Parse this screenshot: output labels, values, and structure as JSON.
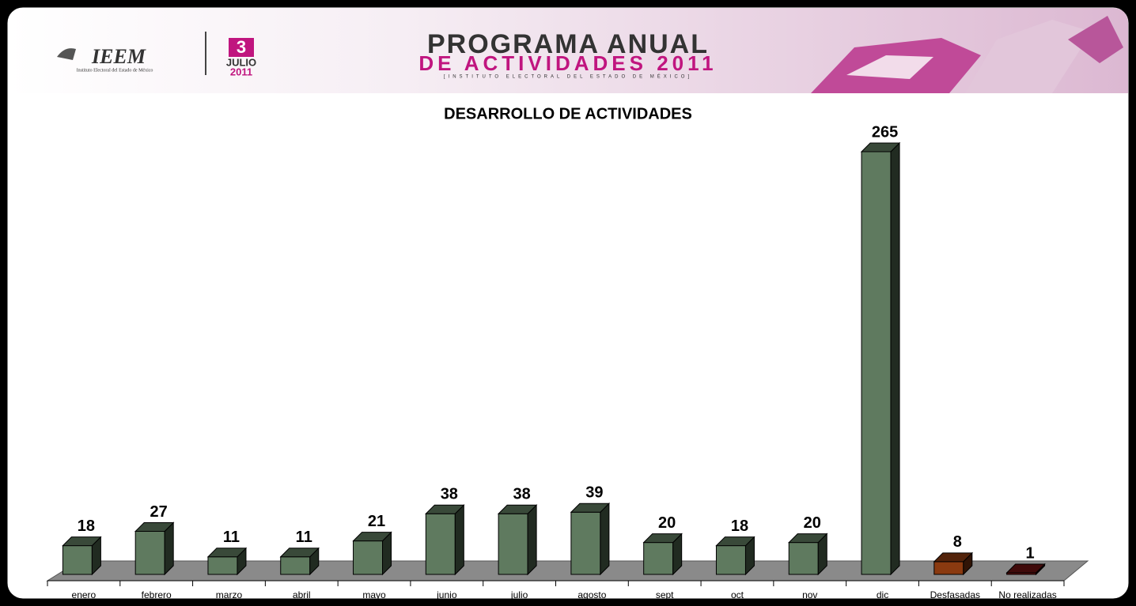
{
  "header": {
    "logo": "IEEM",
    "logo_subtitle": "Instituto Electoral del Estado de México",
    "date_day": "3",
    "date_month": "JULIO",
    "date_year": "2011",
    "title_line1": "PROGRAMA ANUAL",
    "title_line2": "DE ACTIVIDADES 2011",
    "title_line3": "[INSTITUTO ELECTORAL DEL ESTADO DE MÉXICO]"
  },
  "chart_data": {
    "type": "bar3d",
    "title": "DESARROLLO DE ACTIVIDADES",
    "categories": [
      "enero",
      "febrero",
      "marzo",
      "abril",
      "mayo",
      "junio",
      "julio",
      "agosto",
      "sept",
      "oct",
      "nov",
      "dic",
      "Desfasadas",
      "No realizadas"
    ],
    "values": [
      18,
      27,
      11,
      11,
      21,
      38,
      38,
      39,
      20,
      18,
      20,
      265,
      8,
      1
    ],
    "colors": [
      "#5f7a5f",
      "#5f7a5f",
      "#5f7a5f",
      "#5f7a5f",
      "#5f7a5f",
      "#5f7a5f",
      "#5f7a5f",
      "#5f7a5f",
      "#5f7a5f",
      "#5f7a5f",
      "#5f7a5f",
      "#5f7a5f",
      "#8a3a10",
      "#6a1010"
    ]
  }
}
